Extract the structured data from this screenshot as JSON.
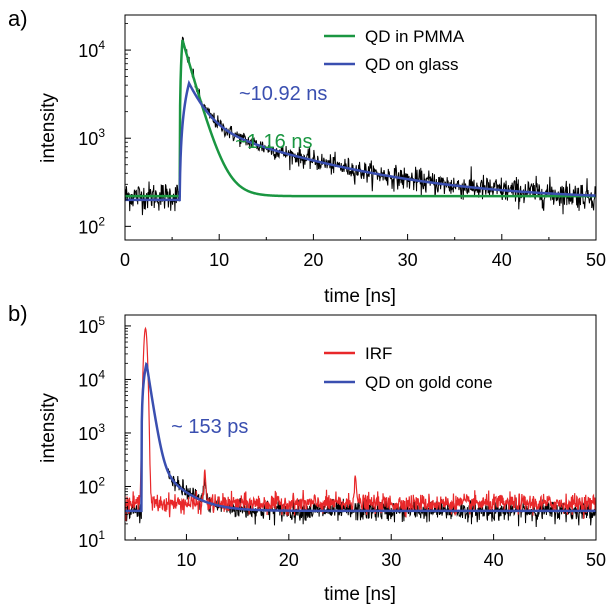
{
  "chart_data": [
    {
      "panel": "a)",
      "type": "line",
      "xlabel": "time [ns]",
      "ylabel": "intensity",
      "xlim": [
        0,
        50
      ],
      "ylim": [
        70,
        25000
      ],
      "y_scale": "log",
      "x_ticks": [
        "0",
        "10",
        "20",
        "30",
        "40",
        "50"
      ],
      "y_ticks": [
        {
          "value": 100,
          "base": "10",
          "exp": "2"
        },
        {
          "value": 1000,
          "base": "10",
          "exp": "3"
        },
        {
          "value": 10000,
          "base": "10",
          "exp": "4"
        }
      ],
      "legend_position": "top-right",
      "series": [
        {
          "name": "QD in PMMA",
          "color": "#1a9641",
          "role": "fit",
          "background": 220,
          "onset": 5.8,
          "peak_time": 6.1,
          "peak": 13000,
          "tau": 1.16,
          "decay": "single-exp"
        },
        {
          "name": "QD on glass",
          "color": "#3a4fb0",
          "role": "fit",
          "background": 200,
          "onset": 5.8,
          "peak_time": 6.8,
          "peak": 4200,
          "tau": 10.92,
          "decay": "bi-exp"
        },
        {
          "color": "#000000",
          "role": "measured",
          "background": 200,
          "noise": "high-frequency",
          "follows_both_fits": true
        }
      ],
      "annotations": [
        {
          "text": "~10.92 ns",
          "color": "#3a4fb0",
          "x": 12.1,
          "y": 2700
        },
        {
          "text": "~1.16 ns",
          "color": "#1a9641",
          "x": 11.7,
          "y": 770
        }
      ]
    },
    {
      "panel": "b)",
      "type": "line",
      "xlabel": "time [ns]",
      "ylabel": "intensity",
      "xlim": [
        4,
        50
      ],
      "ylim": [
        10,
        160000
      ],
      "y_scale": "log",
      "x_ticks": [
        "10",
        "20",
        "30",
        "40",
        "50"
      ],
      "y_ticks": [
        {
          "value": 10,
          "base": "10",
          "exp": "1"
        },
        {
          "value": 100,
          "base": "10",
          "exp": "2"
        },
        {
          "value": 1000,
          "base": "10",
          "exp": "3"
        },
        {
          "value": 10000,
          "base": "10",
          "exp": "4"
        },
        {
          "value": 100000,
          "base": "10",
          "exp": "5"
        }
      ],
      "legend_position": "top-right",
      "series": [
        {
          "name": "IRF",
          "color": "#e8282a",
          "role": "measured",
          "background": 48,
          "peak_time": 6.0,
          "peak": 90000,
          "secondary_peaks": [
            {
              "x": 11.8,
              "y": 180
            },
            {
              "x": 26.5,
              "y": 170
            }
          ]
        },
        {
          "name": "QD on gold cone",
          "color": "#3a4fb0",
          "role": "fit",
          "background": 35,
          "peak_time": 6.1,
          "peak": 20000,
          "tau": 0.153
        },
        {
          "color": "#000000",
          "role": "measured",
          "background": 35,
          "secondary_peaks": [
            {
              "x": 11.8,
              "y": 120
            }
          ]
        }
      ],
      "annotations": [
        {
          "text": "~ 153 ps",
          "color": "#3a4fb0",
          "x": 8.5,
          "y": 1000
        }
      ]
    }
  ]
}
